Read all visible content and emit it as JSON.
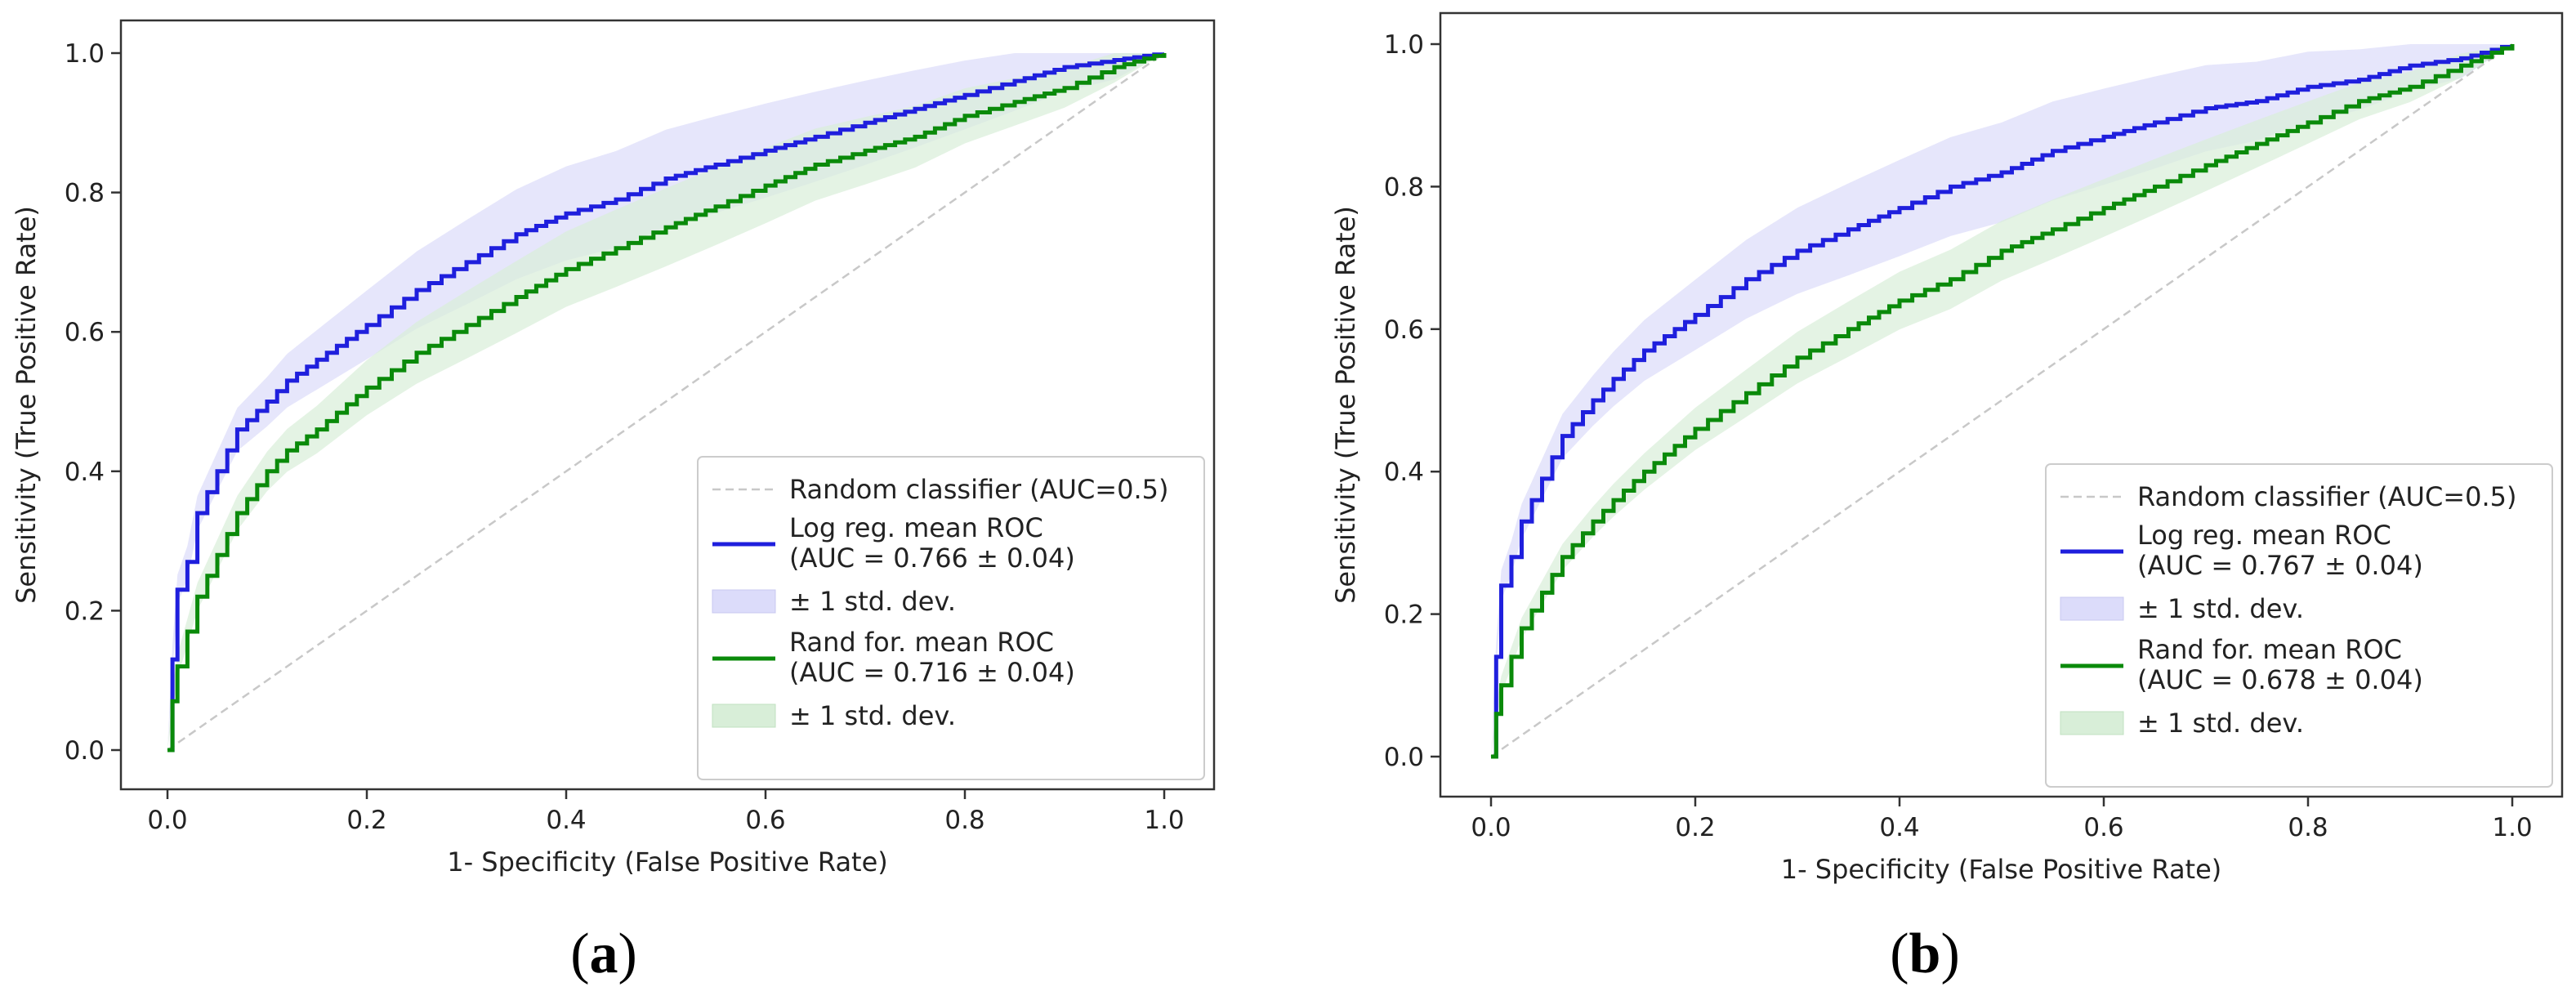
{
  "colors": {
    "log_reg": "#1f1fdd",
    "rand_for": "#0a8a0a",
    "log_reg_band": "#dcdcfa",
    "rand_for_band": "#d8eed8",
    "random": "#c8c8c8"
  },
  "chart_data": [
    {
      "type": "line",
      "panel_label": "a",
      "xlabel": "1- Specificity (False Positive Rate)",
      "ylabel": "Sensitivity (True Positive Rate)",
      "xlim": [
        0,
        1
      ],
      "ylim": [
        0,
        1
      ],
      "xticks": [
        "0.0",
        "0.2",
        "0.4",
        "0.6",
        "0.8",
        "1.0"
      ],
      "yticks": [
        "0.0",
        "0.2",
        "0.4",
        "0.6",
        "0.8",
        "1.0"
      ],
      "legend_position": "lower-right",
      "legend": {
        "random": "Random classifier (AUC=0.5)",
        "log_reg_name": "Log reg. mean ROC",
        "log_reg_auc": "(AUC = 0.766 ± 0.04)",
        "log_reg_band": "± 1 std. dev.",
        "rand_for_name": "Rand for. mean ROC",
        "rand_for_auc": "(AUC = 0.716 ± 0.04)",
        "rand_for_band": "± 1 std. dev."
      },
      "series": [
        {
          "name": "Log reg. mean ROC",
          "color_key": "log_reg",
          "x": [
            0,
            0.005,
            0.01,
            0.02,
            0.03,
            0.05,
            0.07,
            0.1,
            0.12,
            0.15,
            0.2,
            0.25,
            0.3,
            0.35,
            0.4,
            0.45,
            0.5,
            0.55,
            0.6,
            0.65,
            0.7,
            0.75,
            0.8,
            0.85,
            0.9,
            0.95,
            1.0
          ],
          "y": [
            0,
            0.13,
            0.23,
            0.27,
            0.34,
            0.4,
            0.46,
            0.5,
            0.53,
            0.56,
            0.61,
            0.66,
            0.7,
            0.74,
            0.77,
            0.79,
            0.82,
            0.84,
            0.86,
            0.88,
            0.9,
            0.92,
            0.94,
            0.96,
            0.98,
            0.99,
            1.0
          ],
          "std": 0.05
        },
        {
          "name": "Rand for. mean ROC",
          "color_key": "rand_for",
          "x": [
            0,
            0.005,
            0.01,
            0.02,
            0.03,
            0.05,
            0.07,
            0.1,
            0.12,
            0.15,
            0.2,
            0.25,
            0.3,
            0.35,
            0.4,
            0.45,
            0.5,
            0.55,
            0.6,
            0.65,
            0.7,
            0.75,
            0.8,
            0.85,
            0.9,
            0.95,
            1.0
          ],
          "y": [
            0,
            0.07,
            0.12,
            0.17,
            0.22,
            0.28,
            0.34,
            0.4,
            0.43,
            0.46,
            0.52,
            0.57,
            0.61,
            0.65,
            0.69,
            0.72,
            0.75,
            0.78,
            0.81,
            0.84,
            0.86,
            0.88,
            0.91,
            0.93,
            0.95,
            0.98,
            1.0
          ],
          "std": 0.04
        }
      ]
    },
    {
      "type": "line",
      "panel_label": "b",
      "xlabel": "1- Specificity (False Positive Rate)",
      "ylabel": "Sensitivity (True Positive Rate)",
      "xlim": [
        0,
        1
      ],
      "ylim": [
        0,
        1
      ],
      "xticks": [
        "0.0",
        "0.2",
        "0.4",
        "0.6",
        "0.8",
        "1.0"
      ],
      "yticks": [
        "0.0",
        "0.2",
        "0.4",
        "0.6",
        "0.8",
        "1.0"
      ],
      "legend_position": "lower-right",
      "legend": {
        "random": "Random classifier (AUC=0.5)",
        "log_reg_name": "Log reg. mean ROC",
        "log_reg_auc": "(AUC = 0.767 ± 0.04)",
        "log_reg_band": "± 1 std. dev.",
        "rand_for_name": "Rand for. mean ROC",
        "rand_for_auc": "(AUC = 0.678 ± 0.04)",
        "rand_for_band": "± 1 std. dev."
      },
      "series": [
        {
          "name": "Log reg. mean ROC",
          "color_key": "log_reg",
          "x": [
            0,
            0.005,
            0.01,
            0.02,
            0.03,
            0.05,
            0.07,
            0.1,
            0.12,
            0.15,
            0.2,
            0.25,
            0.3,
            0.35,
            0.4,
            0.45,
            0.5,
            0.55,
            0.6,
            0.65,
            0.7,
            0.75,
            0.8,
            0.85,
            0.9,
            0.95,
            1.0
          ],
          "y": [
            0,
            0.14,
            0.24,
            0.28,
            0.33,
            0.39,
            0.45,
            0.5,
            0.53,
            0.57,
            0.62,
            0.67,
            0.71,
            0.74,
            0.77,
            0.8,
            0.82,
            0.85,
            0.87,
            0.89,
            0.91,
            0.92,
            0.94,
            0.95,
            0.97,
            0.98,
            1.0
          ],
          "std": 0.05
        },
        {
          "name": "Rand for. mean ROC",
          "color_key": "rand_for",
          "x": [
            0,
            0.005,
            0.01,
            0.02,
            0.03,
            0.05,
            0.07,
            0.1,
            0.12,
            0.15,
            0.2,
            0.25,
            0.3,
            0.35,
            0.4,
            0.45,
            0.5,
            0.55,
            0.6,
            0.65,
            0.7,
            0.75,
            0.8,
            0.85,
            0.9,
            0.95,
            1.0
          ],
          "y": [
            0,
            0.06,
            0.1,
            0.14,
            0.18,
            0.23,
            0.28,
            0.33,
            0.36,
            0.4,
            0.46,
            0.51,
            0.56,
            0.6,
            0.64,
            0.67,
            0.71,
            0.74,
            0.77,
            0.8,
            0.83,
            0.86,
            0.89,
            0.92,
            0.94,
            0.97,
            1.0
          ],
          "std": 0.03
        }
      ]
    }
  ]
}
